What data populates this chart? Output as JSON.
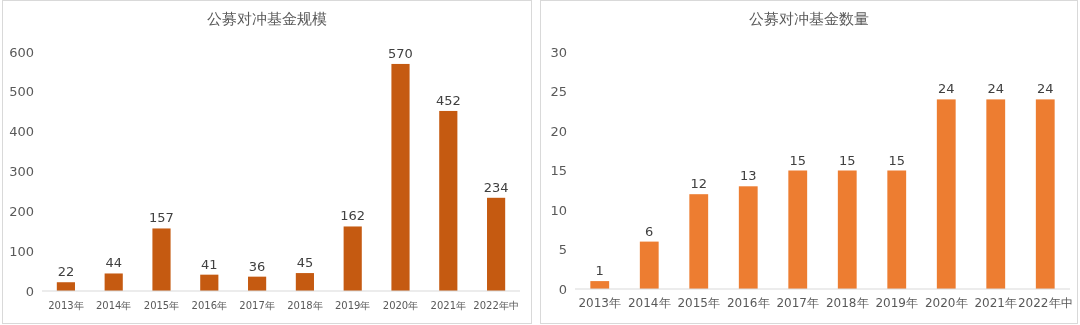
{
  "chart_data": [
    {
      "type": "bar",
      "title": "公募对冲基金规模",
      "categories": [
        "2013年",
        "2014年",
        "2015年",
        "2016年",
        "2017年",
        "2018年",
        "2019年",
        "2020年",
        "2021年",
        "2022年中"
      ],
      "values": [
        22,
        44,
        157,
        41,
        36,
        45,
        162,
        570,
        452,
        234
      ],
      "color": "#c55a11",
      "ylim": [
        0,
        600
      ],
      "yticks": [
        0,
        100,
        200,
        300,
        400,
        500,
        600
      ],
      "data_labels": true
    },
    {
      "type": "bar",
      "title": "公募对冲基金数量",
      "categories": [
        "2013年",
        "2014年",
        "2015年",
        "2016年",
        "2017年",
        "2018年",
        "2019年",
        "2020年",
        "2021年",
        "2022年中"
      ],
      "values": [
        1,
        6,
        12,
        13,
        15,
        15,
        15,
        24,
        24,
        24
      ],
      "color": "#ed7d31",
      "ylim": [
        0,
        30
      ],
      "yticks": [
        0,
        5,
        10,
        15,
        20,
        25,
        30
      ],
      "data_labels": true
    }
  ]
}
